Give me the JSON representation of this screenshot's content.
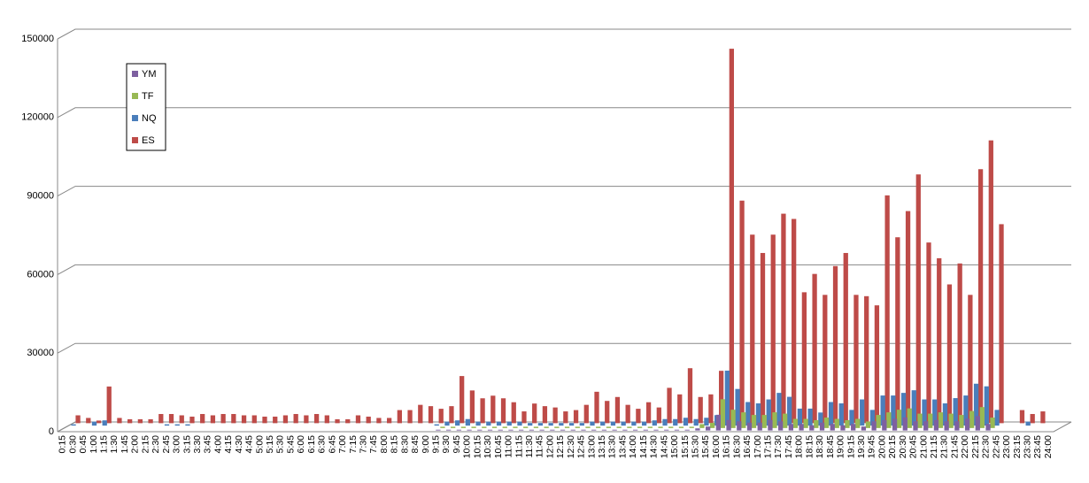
{
  "chart_data": {
    "type": "bar3d",
    "categories": [
      "0:15",
      "0:30",
      "0:45",
      "1:00",
      "1:15",
      "1:30",
      "1:45",
      "2:00",
      "2:15",
      "2:30",
      "2:45",
      "3:00",
      "3:15",
      "3:30",
      "3:45",
      "4:00",
      "4:15",
      "4:30",
      "4:45",
      "5:00",
      "5:15",
      "5:30",
      "5:45",
      "6:00",
      "6:15",
      "6:30",
      "6:45",
      "7:00",
      "7:15",
      "7:30",
      "7:45",
      "8:00",
      "8:15",
      "8:30",
      "8:45",
      "9:00",
      "9:15",
      "9:30",
      "9:45",
      "10:00",
      "10:15",
      "10:30",
      "10:45",
      "11:00",
      "11:15",
      "11:30",
      "11:45",
      "12:00",
      "12:15",
      "12:30",
      "12:45",
      "13:00",
      "13:15",
      "13:30",
      "13:45",
      "14:00",
      "14:15",
      "14:30",
      "14:45",
      "15:00",
      "15:15",
      "15:30",
      "15:45",
      "16:00",
      "16:15",
      "16:30",
      "16:45",
      "17:00",
      "17:15",
      "17:30",
      "17:45",
      "18:00",
      "18:15",
      "18:30",
      "18:45",
      "19:00",
      "19:15",
      "19:30",
      "19:45",
      "20:00",
      "20:15",
      "20:30",
      "20:45",
      "21:00",
      "21:15",
      "21:30",
      "21:45",
      "22:00",
      "22:15",
      "22:30",
      "22:45",
      "23:00",
      "23:15",
      "23:30",
      "23:45",
      "24:00"
    ],
    "series": [
      {
        "name": "YM",
        "color": "#7d60a0",
        "values": [
          0,
          0,
          0,
          0,
          0,
          0,
          0,
          0,
          0,
          0,
          0,
          0,
          0,
          0,
          0,
          0,
          0,
          0,
          0,
          0,
          0,
          0,
          0,
          0,
          0,
          0,
          0,
          0,
          0,
          0,
          0,
          0,
          0,
          0,
          0,
          0,
          300,
          300,
          300,
          300,
          300,
          300,
          300,
          300,
          300,
          300,
          300,
          300,
          300,
          300,
          300,
          300,
          300,
          300,
          300,
          300,
          300,
          300,
          300,
          300,
          300,
          800,
          1500,
          6000,
          4000,
          3500,
          3000,
          3000,
          4000,
          3500,
          2500,
          2500,
          2000,
          3000,
          2500,
          2000,
          2500,
          1500,
          3500,
          4000,
          4500,
          5000,
          3500,
          3500,
          4000,
          3500,
          3500,
          4500,
          5500,
          2500,
          0,
          0,
          0,
          0,
          0,
          0
        ]
      },
      {
        "name": "TF",
        "color": "#98b954",
        "values": [
          0,
          0,
          0,
          0,
          0,
          0,
          0,
          0,
          0,
          0,
          0,
          0,
          0,
          0,
          0,
          0,
          0,
          0,
          0,
          0,
          0,
          0,
          0,
          0,
          0,
          0,
          0,
          0,
          0,
          0,
          0,
          0,
          0,
          0,
          0,
          0,
          500,
          500,
          500,
          500,
          500,
          500,
          500,
          500,
          500,
          500,
          500,
          500,
          500,
          500,
          500,
          500,
          500,
          500,
          500,
          500,
          500,
          500,
          500,
          500,
          500,
          1500,
          2000,
          11000,
          7000,
          6000,
          5000,
          5000,
          6000,
          5500,
          3500,
          3500,
          3000,
          4000,
          3500,
          3000,
          3500,
          2500,
          5000,
          6000,
          7000,
          7500,
          5500,
          5500,
          6000,
          5500,
          5000,
          6500,
          8000,
          4000,
          0,
          0,
          0,
          0,
          0,
          0
        ]
      },
      {
        "name": "NQ",
        "color": "#4a7ebb",
        "values": [
          500,
          0,
          1500,
          2000,
          0,
          0,
          0,
          0,
          0,
          500,
          500,
          500,
          0,
          0,
          0,
          0,
          0,
          0,
          0,
          0,
          0,
          0,
          0,
          0,
          0,
          0,
          0,
          0,
          0,
          0,
          0,
          0,
          0,
          0,
          0,
          500,
          1500,
          2000,
          2500,
          1500,
          1500,
          1500,
          1500,
          1500,
          1000,
          1000,
          1000,
          1000,
          1000,
          1000,
          1500,
          1500,
          1500,
          1500,
          1500,
          1500,
          2000,
          2500,
          2500,
          3000,
          2500,
          3000,
          4000,
          21000,
          14000,
          9000,
          8500,
          10000,
          12500,
          11000,
          6500,
          6500,
          5000,
          9000,
          8500,
          6000,
          10000,
          6000,
          11500,
          11500,
          12500,
          13500,
          10000,
          10000,
          8500,
          10500,
          11500,
          16000,
          15000,
          6000,
          0,
          0,
          1500,
          0,
          0,
          0
        ]
      },
      {
        "name": "ES",
        "color": "#be4b48",
        "values": [
          3000,
          2000,
          1000,
          14000,
          2000,
          1500,
          1500,
          1500,
          3500,
          3500,
          3000,
          2500,
          3500,
          3000,
          3500,
          3500,
          3000,
          3000,
          2500,
          2500,
          3000,
          3500,
          3000,
          3500,
          3000,
          1500,
          1500,
          3000,
          2500,
          2000,
          2000,
          5000,
          5000,
          7000,
          6500,
          5500,
          6500,
          18000,
          12500,
          9500,
          10500,
          9500,
          8000,
          4500,
          7500,
          6500,
          6000,
          4500,
          5000,
          7000,
          12000,
          8500,
          10000,
          7000,
          5500,
          8000,
          6000,
          13500,
          11000,
          21000,
          10000,
          11000,
          20000,
          143000,
          85000,
          72000,
          65000,
          72000,
          80000,
          78000,
          50000,
          57000,
          49000,
          60000,
          65000,
          49000,
          48500,
          45000,
          87000,
          71000,
          81000,
          95000,
          69000,
          63000,
          53000,
          61000,
          49000,
          97000,
          108000,
          76000,
          0,
          5000,
          3500,
          4500,
          0,
          0
        ]
      }
    ],
    "ylim": [
      0,
      150000
    ],
    "yticks": [
      0,
      30000,
      60000,
      90000,
      120000,
      150000
    ],
    "grid": true,
    "legend": "upper-left"
  }
}
